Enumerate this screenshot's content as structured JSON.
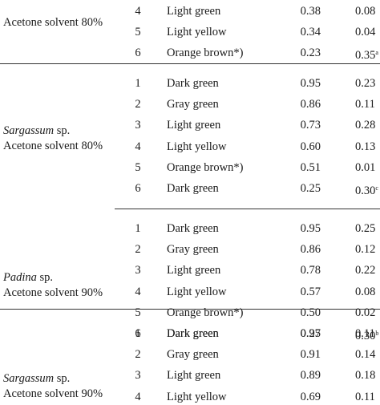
{
  "groups": [
    {
      "species": "",
      "sp_suffix": "",
      "solvent": "Acetone solvent 80%",
      "rows": [
        {
          "no": "4",
          "color": "Light green",
          "rf": "0.38",
          "val": "0.08",
          "sup": ""
        },
        {
          "no": "5",
          "color": "Light yellow",
          "rf": "0.34",
          "val": "0.04",
          "sup": ""
        },
        {
          "no": "6",
          "color": "Orange brown*)",
          "rf": "0.23",
          "val": "0.35",
          "sup": "a"
        }
      ]
    },
    {
      "species": "Sargassum",
      "sp_suffix": " sp.",
      "solvent": "Acetone solvent 80%",
      "rows": [
        {
          "no": "1",
          "color": "Dark green",
          "rf": "0.95",
          "val": "0.23",
          "sup": ""
        },
        {
          "no": "2",
          "color": "Gray green",
          "rf": "0.86",
          "val": "0.11",
          "sup": ""
        },
        {
          "no": "3",
          "color": "Light green",
          "rf": "0.73",
          "val": "0.28",
          "sup": ""
        },
        {
          "no": "4",
          "color": "Light yellow",
          "rf": "0.60",
          "val": "0.13",
          "sup": ""
        },
        {
          "no": "5",
          "color": "Orange brown*)",
          "rf": "0.51",
          "val": "0.01",
          "sup": ""
        },
        {
          "no": "6",
          "color": "Dark green",
          "rf": "0.25",
          "val": "0.30",
          "sup": "c"
        }
      ]
    },
    {
      "species": "Padina",
      "sp_suffix": " sp.",
      "solvent": "Acetone solvent 90%",
      "rows": [
        {
          "no": "1",
          "color": "Dark green",
          "rf": "0.95",
          "val": "0.25",
          "sup": ""
        },
        {
          "no": "2",
          "color": "Gray green",
          "rf": "0.86",
          "val": "0.12",
          "sup": ""
        },
        {
          "no": "3",
          "color": "Light green",
          "rf": "0.78",
          "val": "0.22",
          "sup": ""
        },
        {
          "no": "4",
          "color": "Light yellow",
          "rf": "0.57",
          "val": "0.08",
          "sup": ""
        },
        {
          "no": "5",
          "color": "Orange brown*)",
          "rf": "0.50",
          "val": "0.02",
          "sup": ""
        },
        {
          "no": "6",
          "color": "Dark green",
          "rf": "0.27",
          "val": "0.30",
          "sup": "b"
        }
      ]
    },
    {
      "species": "Sargassum",
      "sp_suffix": " sp.",
      "solvent": "Acetone solvent 90%",
      "rows": [
        {
          "no": "1",
          "color": "Dark green",
          "rf": "0.95",
          "val": "0.11",
          "sup": ""
        },
        {
          "no": "2",
          "color": "Gray green",
          "rf": "0.91",
          "val": "0.14",
          "sup": ""
        },
        {
          "no": "3",
          "color": "Light green",
          "rf": "0.89",
          "val": "0.18",
          "sup": ""
        },
        {
          "no": "4",
          "color": "Light yellow",
          "rf": "0.69",
          "val": "0.11",
          "sup": ""
        }
      ]
    }
  ]
}
